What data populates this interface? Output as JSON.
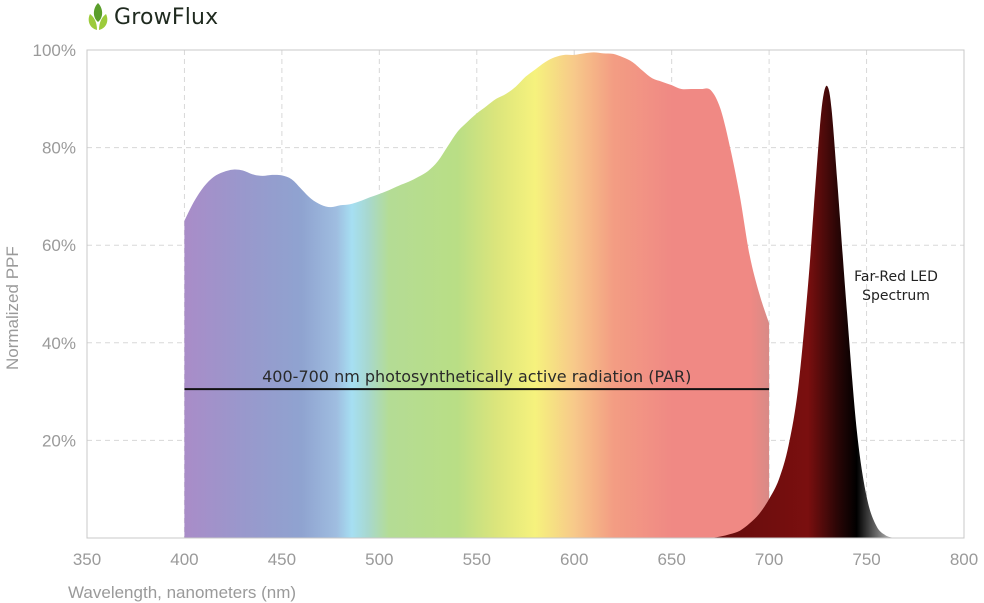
{
  "brand": {
    "name": "GrowFlux",
    "logo_icon": "leaf-sprout-icon",
    "colors": {
      "leaf_light": "#9ccb3b",
      "leaf_dark": "#5a9e2a"
    }
  },
  "chart_data": {
    "type": "area",
    "xlabel": "Wavelength, nanometers (nm)",
    "ylabel": "Normalized PPF",
    "xlim": [
      350,
      800
    ],
    "ylim": [
      0,
      100
    ],
    "x_ticks": [
      {
        "value": 350,
        "label": "350"
      },
      {
        "value": 400,
        "label": "400"
      },
      {
        "value": 450,
        "label": "450"
      },
      {
        "value": 500,
        "label": "500"
      },
      {
        "value": 550,
        "label": "550"
      },
      {
        "value": 600,
        "label": "600"
      },
      {
        "value": 650,
        "label": "650"
      },
      {
        "value": 700,
        "label": "700"
      },
      {
        "value": 750,
        "label": "750"
      },
      {
        "value": 800,
        "label": "800"
      }
    ],
    "y_ticks": [
      {
        "value": 20,
        "label": "20%"
      },
      {
        "value": 40,
        "label": "40%"
      },
      {
        "value": 60,
        "label": "60%"
      },
      {
        "value": 80,
        "label": "80%"
      },
      {
        "value": 100,
        "label": "100%"
      }
    ],
    "grid": true,
    "series": [
      {
        "kind": "par-spectrum",
        "fill": "visible-spectrum-gradient",
        "x": [
          400,
          405,
          410,
          415,
          420,
          425,
          430,
          435,
          440,
          445,
          450,
          455,
          460,
          465,
          470,
          475,
          480,
          485,
          490,
          495,
          500,
          505,
          510,
          515,
          520,
          525,
          530,
          535,
          540,
          545,
          550,
          555,
          560,
          565,
          570,
          575,
          580,
          585,
          590,
          595,
          600,
          605,
          610,
          615,
          620,
          625,
          630,
          635,
          640,
          645,
          650,
          655,
          660,
          665,
          670,
          675,
          680,
          685,
          690,
          695,
          700
        ],
        "y": [
          65,
          69,
          72,
          74,
          75,
          75.5,
          75.3,
          74.5,
          74.2,
          74.4,
          74.3,
          73.5,
          71.5,
          69.5,
          68.3,
          67.8,
          68.2,
          68.4,
          69,
          69.8,
          70.5,
          71.3,
          72.2,
          73,
          74,
          75.2,
          77.2,
          80.2,
          83.2,
          85.2,
          87,
          88.5,
          90,
          91,
          92.5,
          94.5,
          96,
          97.5,
          98.5,
          99,
          99,
          99.3,
          99.5,
          99.3,
          99.2,
          98.5,
          97.5,
          95.8,
          94.2,
          93.5,
          92.8,
          92,
          92,
          92,
          91.8,
          88,
          80,
          70,
          58,
          50,
          44
        ]
      },
      {
        "kind": "far-red-led",
        "fill": "dark-red-gradient",
        "x": [
          670,
          675,
          680,
          685,
          690,
          695,
          700,
          705,
          710,
          715,
          720,
          723,
          726,
          728,
          730,
          732,
          735,
          740,
          745,
          750,
          755,
          760,
          765
        ],
        "y": [
          0,
          0.3,
          0.8,
          1.5,
          3,
          5,
          8,
          12,
          19,
          31,
          52,
          68,
          84,
          91,
          92.5,
          88,
          73,
          46,
          22,
          8.5,
          2.5,
          0.5,
          0
        ]
      }
    ],
    "annotations": [
      {
        "text": "400-700 nm photosynthetically active radiation (PAR)",
        "x_start": 400,
        "x_end": 700,
        "y": 30.5
      },
      {
        "text_lines": [
          "Far-Red LED",
          "Spectrum"
        ],
        "x": 752,
        "y": 55
      }
    ],
    "gradient_colors": {
      "spectrum": [
        {
          "nm": 400,
          "color": "#a98cc8"
        },
        {
          "nm": 430,
          "color": "#9998cc"
        },
        {
          "nm": 460,
          "color": "#8fa3d0"
        },
        {
          "nm": 478,
          "color": "#9fbde0"
        },
        {
          "nm": 486,
          "color": "#a6dff2"
        },
        {
          "nm": 494,
          "color": "#a7d8d0"
        },
        {
          "nm": 505,
          "color": "#b4dc95"
        },
        {
          "nm": 540,
          "color": "#b9de85"
        },
        {
          "nm": 560,
          "color": "#dbe57c"
        },
        {
          "nm": 580,
          "color": "#f6f27d"
        },
        {
          "nm": 600,
          "color": "#f7c98a"
        },
        {
          "nm": 620,
          "color": "#f39d83"
        },
        {
          "nm": 650,
          "color": "#f08984"
        },
        {
          "nm": 690,
          "color": "#f08984"
        },
        {
          "nm": 700,
          "color": "#d88a86"
        }
      ],
      "far_red": [
        {
          "nm": 685,
          "color": "#6a0d0d"
        },
        {
          "nm": 720,
          "color": "#7a0f0f"
        },
        {
          "nm": 735,
          "color": "#2a0606"
        },
        {
          "nm": 745,
          "color": "#000000"
        },
        {
          "nm": 760,
          "color": "#9c9c9c"
        }
      ],
      "par_line": "#111111",
      "grid": "#d8d8d8",
      "frame": "#c8c8c8"
    }
  }
}
